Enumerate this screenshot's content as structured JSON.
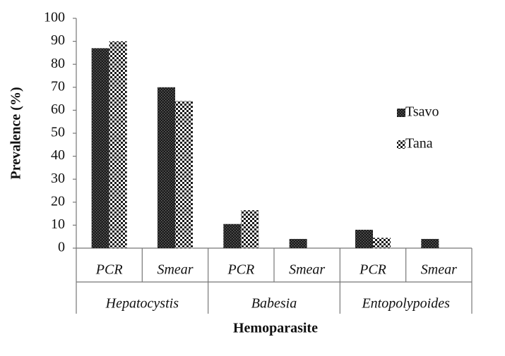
{
  "chart_data": {
    "type": "bar",
    "x_label": "Hemoparasite",
    "y_label": "Prevalence (%)",
    "categories": [
      "PCR",
      "Smear",
      "PCR",
      "Smear",
      "PCR",
      "Smear"
    ],
    "group_labels": [
      "Hepatocystis",
      "Babesia",
      "Entopolypoides"
    ],
    "series": [
      {
        "name": "Tsavo",
        "color": "#1a1a1a",
        "pattern": "dense",
        "values": [
          87,
          70,
          10.5,
          4,
          8,
          4
        ]
      },
      {
        "name": "Tana",
        "color": "#1a1a1a",
        "pattern": "checker",
        "values": [
          90,
          64,
          16.5,
          0,
          4.5,
          0
        ]
      }
    ],
    "ylim": [
      0,
      100
    ],
    "yticks": [
      0,
      10,
      20,
      30,
      40,
      50,
      60,
      70,
      80,
      90,
      100
    ],
    "grid": false,
    "legend": "right"
  }
}
